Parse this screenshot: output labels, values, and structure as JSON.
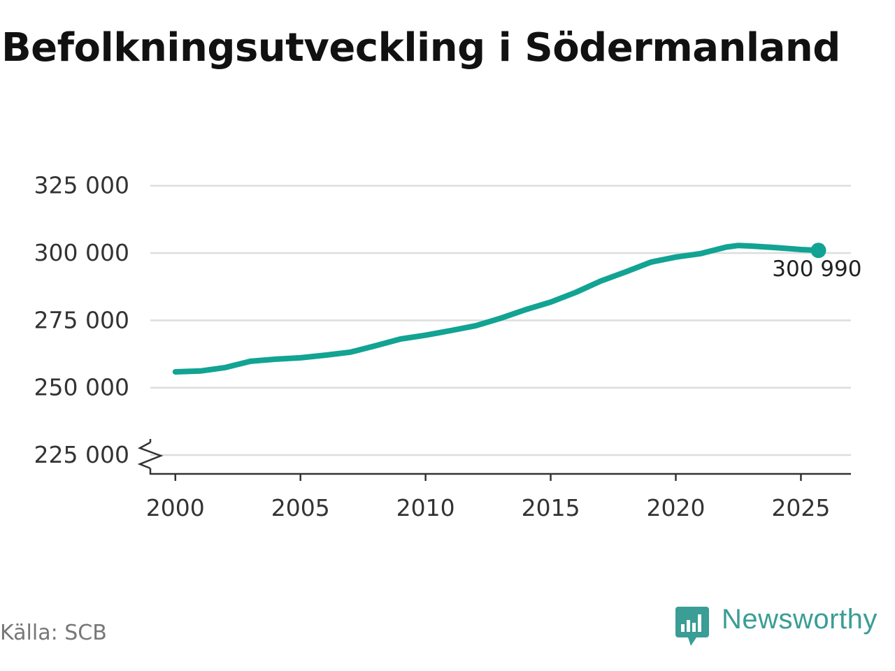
{
  "title": "Befolkningsutveckling i Södermanland",
  "source_label": "Källa: SCB",
  "brand": {
    "name": "Newsworthy",
    "icon": "newsworthy-chart-bubble-icon",
    "color": "#3a9d96"
  },
  "colors": {
    "line": "#12a393",
    "grid": "#dddddd",
    "axis": "#333333",
    "text": "#333333"
  },
  "chart_data": {
    "type": "line",
    "title": "Befolkningsutveckling i Södermanland",
    "xlabel": "",
    "ylabel": "",
    "xlim": [
      1999,
      2027
    ],
    "ylim": [
      218000,
      327000
    ],
    "y_axis_break": true,
    "grid": "horizontal",
    "x_ticks": [
      2000,
      2005,
      2010,
      2015,
      2020,
      2025
    ],
    "x_tick_labels": [
      "2000",
      "2005",
      "2010",
      "2015",
      "2020",
      "2025"
    ],
    "y_ticks": [
      225000,
      250000,
      275000,
      300000,
      325000
    ],
    "y_tick_labels": [
      "225 000",
      "250 000",
      "275 000",
      "300 000",
      "325 000"
    ],
    "series": [
      {
        "x": [
          2000.0,
          2001.0,
          2002.0,
          2003.0,
          2004.0,
          2005.0,
          2006.0,
          2007.0,
          2008.0,
          2009.0,
          2010.0,
          2011.0,
          2012.0,
          2013.0,
          2014.0,
          2015.0,
          2016.0,
          2017.0,
          2018.0,
          2019.0,
          2020.0,
          2021.0,
          2022.0,
          2022.5,
          2023.0,
          2024.0,
          2025.0,
          2025.7
        ],
        "y": [
          255900,
          256200,
          257500,
          259800,
          260600,
          261100,
          262100,
          263200,
          265600,
          268100,
          269500,
          271200,
          273000,
          275800,
          279000,
          281800,
          285400,
          289600,
          293000,
          296600,
          298500,
          299800,
          302200,
          302800,
          302600,
          302000,
          301300,
          300990
        ]
      }
    ],
    "end_label": "300 990"
  }
}
